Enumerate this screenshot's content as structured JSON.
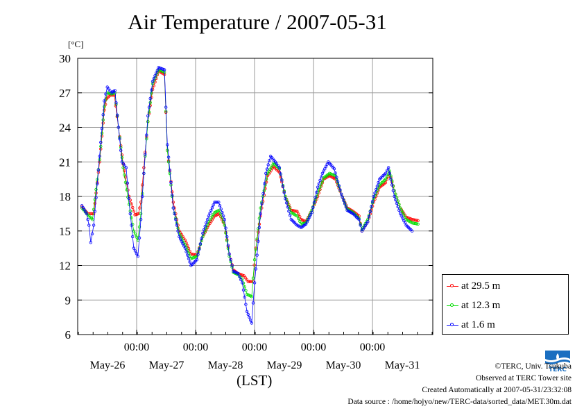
{
  "chart_data": {
    "type": "line",
    "title": "Air Temperature / 2007-05-31",
    "ylabel": "[°C]",
    "xlabel": "(LST)",
    "ylim": [
      6,
      30
    ],
    "yticks": [
      6,
      9,
      12,
      15,
      18,
      21,
      24,
      27,
      30
    ],
    "xlim_days": [
      0,
      6.1
    ],
    "x_tick_labels": [
      "00:00",
      "00:00",
      "00:00",
      "00:00",
      "00:00"
    ],
    "day_labels": [
      "May-26",
      "May-27",
      "May-28",
      "May-29",
      "May-30",
      "May-31"
    ],
    "grid": true,
    "legend_position": "bottom-right outside",
    "series": [
      {
        "name": "at 29.5 m",
        "color": "#ff0000",
        "points": [
          [
            0.0,
            17.1
          ],
          [
            0.1,
            16.5
          ],
          [
            0.2,
            16.5
          ],
          [
            0.3,
            21.0
          ],
          [
            0.38,
            25.5
          ],
          [
            0.42,
            26.5
          ],
          [
            0.48,
            26.8
          ],
          [
            0.55,
            26.8
          ],
          [
            0.62,
            24.0
          ],
          [
            0.7,
            20.8
          ],
          [
            0.8,
            18.0
          ],
          [
            0.9,
            16.4
          ],
          [
            0.96,
            16.5
          ],
          [
            1.0,
            17.5
          ],
          [
            1.05,
            20.5
          ],
          [
            1.12,
            24.5
          ],
          [
            1.2,
            27.3
          ],
          [
            1.3,
            28.9
          ],
          [
            1.4,
            28.6
          ],
          [
            1.45,
            22.0
          ],
          [
            1.55,
            17.5
          ],
          [
            1.65,
            15.0
          ],
          [
            1.75,
            14.2
          ],
          [
            1.85,
            13.0
          ],
          [
            1.95,
            12.9
          ],
          [
            2.05,
            14.5
          ],
          [
            2.15,
            15.5
          ],
          [
            2.25,
            16.3
          ],
          [
            2.33,
            16.5
          ],
          [
            2.42,
            15.5
          ],
          [
            2.5,
            13.0
          ],
          [
            2.57,
            11.6
          ],
          [
            2.65,
            11.3
          ],
          [
            2.75,
            11.1
          ],
          [
            2.82,
            10.6
          ],
          [
            2.9,
            10.6
          ],
          [
            2.95,
            13.5
          ],
          [
            3.05,
            17.0
          ],
          [
            3.15,
            19.8
          ],
          [
            3.25,
            20.6
          ],
          [
            3.35,
            20.1
          ],
          [
            3.45,
            18.0
          ],
          [
            3.55,
            16.8
          ],
          [
            3.65,
            16.7
          ],
          [
            3.72,
            16.0
          ],
          [
            3.8,
            15.8
          ],
          [
            3.9,
            16.8
          ],
          [
            4.0,
            18.0
          ],
          [
            4.1,
            19.5
          ],
          [
            4.2,
            19.8
          ],
          [
            4.3,
            19.5
          ],
          [
            4.4,
            18.2
          ],
          [
            4.5,
            17.0
          ],
          [
            4.6,
            16.7
          ],
          [
            4.7,
            16.3
          ],
          [
            4.75,
            15.0
          ],
          [
            4.85,
            15.8
          ],
          [
            4.95,
            17.5
          ],
          [
            5.05,
            18.8
          ],
          [
            5.15,
            19.2
          ],
          [
            5.22,
            20.0
          ],
          [
            5.3,
            18.5
          ],
          [
            5.4,
            17.0
          ],
          [
            5.5,
            16.2
          ],
          [
            5.6,
            16.0
          ],
          [
            5.7,
            15.9
          ]
        ]
      },
      {
        "name": "at 12.3 m",
        "color": "#00dd00",
        "points": [
          [
            0.0,
            17.0
          ],
          [
            0.1,
            16.4
          ],
          [
            0.18,
            16.0
          ],
          [
            0.3,
            21.2
          ],
          [
            0.38,
            25.8
          ],
          [
            0.43,
            27.0
          ],
          [
            0.5,
            26.9
          ],
          [
            0.56,
            27.0
          ],
          [
            0.62,
            24.0
          ],
          [
            0.7,
            20.5
          ],
          [
            0.8,
            17.3
          ],
          [
            0.88,
            15.0
          ],
          [
            0.95,
            14.2
          ],
          [
            1.0,
            16.5
          ],
          [
            1.05,
            20.0
          ],
          [
            1.12,
            24.5
          ],
          [
            1.2,
            27.8
          ],
          [
            1.3,
            29.0
          ],
          [
            1.4,
            28.8
          ],
          [
            1.45,
            22.0
          ],
          [
            1.55,
            17.0
          ],
          [
            1.65,
            14.8
          ],
          [
            1.75,
            13.8
          ],
          [
            1.85,
            12.6
          ],
          [
            1.95,
            12.8
          ],
          [
            2.05,
            14.5
          ],
          [
            2.15,
            15.8
          ],
          [
            2.25,
            16.6
          ],
          [
            2.33,
            16.8
          ],
          [
            2.42,
            15.5
          ],
          [
            2.5,
            12.8
          ],
          [
            2.57,
            11.4
          ],
          [
            2.65,
            11.2
          ],
          [
            2.72,
            10.8
          ],
          [
            2.8,
            9.5
          ],
          [
            2.88,
            9.3
          ],
          [
            2.93,
            12.5
          ],
          [
            3.03,
            17.0
          ],
          [
            3.15,
            20.0
          ],
          [
            3.25,
            20.9
          ],
          [
            3.35,
            20.4
          ],
          [
            3.45,
            18.0
          ],
          [
            3.55,
            16.6
          ],
          [
            3.65,
            16.3
          ],
          [
            3.72,
            15.6
          ],
          [
            3.8,
            15.7
          ],
          [
            3.9,
            16.8
          ],
          [
            4.0,
            18.3
          ],
          [
            4.1,
            19.6
          ],
          [
            4.2,
            20.0
          ],
          [
            4.3,
            19.8
          ],
          [
            4.4,
            18.2
          ],
          [
            4.5,
            16.9
          ],
          [
            4.6,
            16.6
          ],
          [
            4.7,
            16.1
          ],
          [
            4.75,
            15.1
          ],
          [
            4.85,
            16.0
          ],
          [
            4.95,
            17.8
          ],
          [
            5.05,
            19.0
          ],
          [
            5.15,
            19.5
          ],
          [
            5.22,
            20.2
          ],
          [
            5.3,
            18.5
          ],
          [
            5.4,
            17.0
          ],
          [
            5.5,
            16.0
          ],
          [
            5.6,
            15.7
          ],
          [
            5.7,
            15.6
          ]
        ]
      },
      {
        "name": "at 1.6 m",
        "color": "#0000ff",
        "points": [
          [
            0.0,
            17.2
          ],
          [
            0.08,
            16.5
          ],
          [
            0.12,
            15.5
          ],
          [
            0.15,
            14.0
          ],
          [
            0.2,
            15.5
          ],
          [
            0.3,
            21.5
          ],
          [
            0.38,
            26.3
          ],
          [
            0.43,
            27.5
          ],
          [
            0.5,
            27.0
          ],
          [
            0.56,
            27.2
          ],
          [
            0.62,
            24.0
          ],
          [
            0.68,
            21.0
          ],
          [
            0.75,
            20.5
          ],
          [
            0.82,
            16.5
          ],
          [
            0.88,
            13.5
          ],
          [
            0.95,
            12.8
          ],
          [
            1.0,
            16.0
          ],
          [
            1.05,
            20.0
          ],
          [
            1.12,
            25.0
          ],
          [
            1.2,
            28.0
          ],
          [
            1.3,
            29.2
          ],
          [
            1.4,
            29.0
          ],
          [
            1.45,
            22.5
          ],
          [
            1.55,
            17.0
          ],
          [
            1.65,
            14.5
          ],
          [
            1.75,
            13.5
          ],
          [
            1.85,
            12.0
          ],
          [
            1.95,
            12.5
          ],
          [
            2.05,
            14.8
          ],
          [
            2.15,
            16.3
          ],
          [
            2.25,
            17.5
          ],
          [
            2.32,
            17.5
          ],
          [
            2.42,
            16.0
          ],
          [
            2.5,
            13.0
          ],
          [
            2.57,
            11.5
          ],
          [
            2.65,
            11.3
          ],
          [
            2.72,
            10.5
          ],
          [
            2.8,
            8.0
          ],
          [
            2.88,
            7.0
          ],
          [
            2.93,
            10.5
          ],
          [
            3.03,
            16.5
          ],
          [
            3.12,
            20.0
          ],
          [
            3.2,
            21.5
          ],
          [
            3.28,
            21.0
          ],
          [
            3.35,
            20.5
          ],
          [
            3.45,
            17.8
          ],
          [
            3.55,
            16.0
          ],
          [
            3.65,
            15.5
          ],
          [
            3.72,
            15.3
          ],
          [
            3.8,
            15.6
          ],
          [
            3.9,
            16.6
          ],
          [
            4.0,
            18.8
          ],
          [
            4.08,
            20.0
          ],
          [
            4.18,
            21.0
          ],
          [
            4.28,
            20.4
          ],
          [
            4.4,
            18.2
          ],
          [
            4.5,
            16.8
          ],
          [
            4.6,
            16.5
          ],
          [
            4.7,
            16.0
          ],
          [
            4.75,
            15.0
          ],
          [
            4.85,
            15.8
          ],
          [
            4.95,
            18.0
          ],
          [
            5.05,
            19.5
          ],
          [
            5.15,
            20.0
          ],
          [
            5.2,
            20.5
          ],
          [
            5.3,
            18.0
          ],
          [
            5.4,
            16.5
          ],
          [
            5.5,
            15.5
          ],
          [
            5.6,
            15.0
          ]
        ]
      }
    ]
  },
  "credits": {
    "copyright": "©TERC, Univ. Tsukuba",
    "observed": "Observed at TERC Tower site",
    "created": "Created Automatically at 2007-05-31/23:32:08",
    "source": "Data source : /home/hojyo/new/TERC-data/sorted_data/MET.30m.dat",
    "logo_text": "TERC"
  }
}
